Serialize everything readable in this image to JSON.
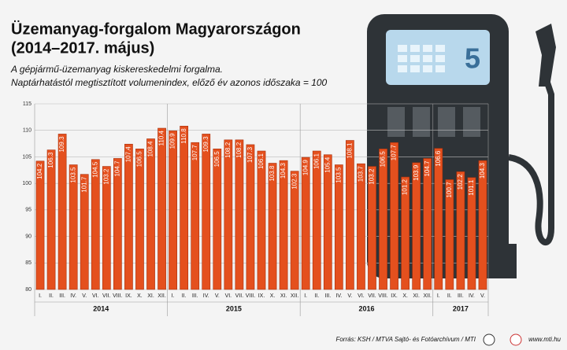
{
  "chart_data": {
    "type": "bar",
    "title": "Üzemanyag-forgalom Magyarországon",
    "title_line2": "(2014–2017. május)",
    "subtitle": "A gépjármű-üzemanyag kiskereskedelmi forgalma.",
    "subtitle_line2": "Naptárhatástól megtisztított volumenindex, előző év azonos időszaka = 100",
    "groups": [
      {
        "name": "2014",
        "categories": [
          "I.",
          "II.",
          "III.",
          "IV.",
          "V.",
          "VI.",
          "VII.",
          "VIII.",
          "IX.",
          "X.",
          "XI.",
          "XII."
        ]
      },
      {
        "name": "2015",
        "categories": [
          "I.",
          "II.",
          "III.",
          "IV.",
          "V.",
          "VI.",
          "VII.",
          "VIII.",
          "IX.",
          "X.",
          "XI.",
          "XII."
        ]
      },
      {
        "name": "2016",
        "categories": [
          "I.",
          "II.",
          "III.",
          "IV.",
          "V.",
          "VI.",
          "VII.",
          "VIII.",
          "IX.",
          "X.",
          "XI.",
          "XII."
        ]
      },
      {
        "name": "2017",
        "categories": [
          "I.",
          "II.",
          "III.",
          "IV.",
          "V."
        ]
      }
    ],
    "values": [
      104.2,
      106.3,
      109.3,
      103.5,
      101.7,
      104.5,
      103.2,
      104.7,
      107.4,
      106.5,
      108.4,
      110.4,
      109.9,
      110.8,
      107.7,
      109.3,
      106.5,
      108.2,
      108.2,
      107.3,
      106.1,
      103.8,
      104.3,
      102.3,
      104.9,
      106.1,
      105.4,
      103.5,
      108.1,
      103.7,
      103.2,
      106.5,
      107.7,
      101.2,
      103.9,
      104.7,
      106.6,
      100.7,
      102.2,
      101.1,
      104.3
    ],
    "color": "#e4501e",
    "ylim": [
      80,
      115
    ],
    "yticks": [
      80,
      85,
      90,
      95,
      100,
      105,
      110,
      115
    ],
    "grid": true,
    "pump_label": "5",
    "source": "Forrás: KSH / MTVA Sajtó- és Fotóarchívum / MTI",
    "website": "www.mti.hu"
  }
}
